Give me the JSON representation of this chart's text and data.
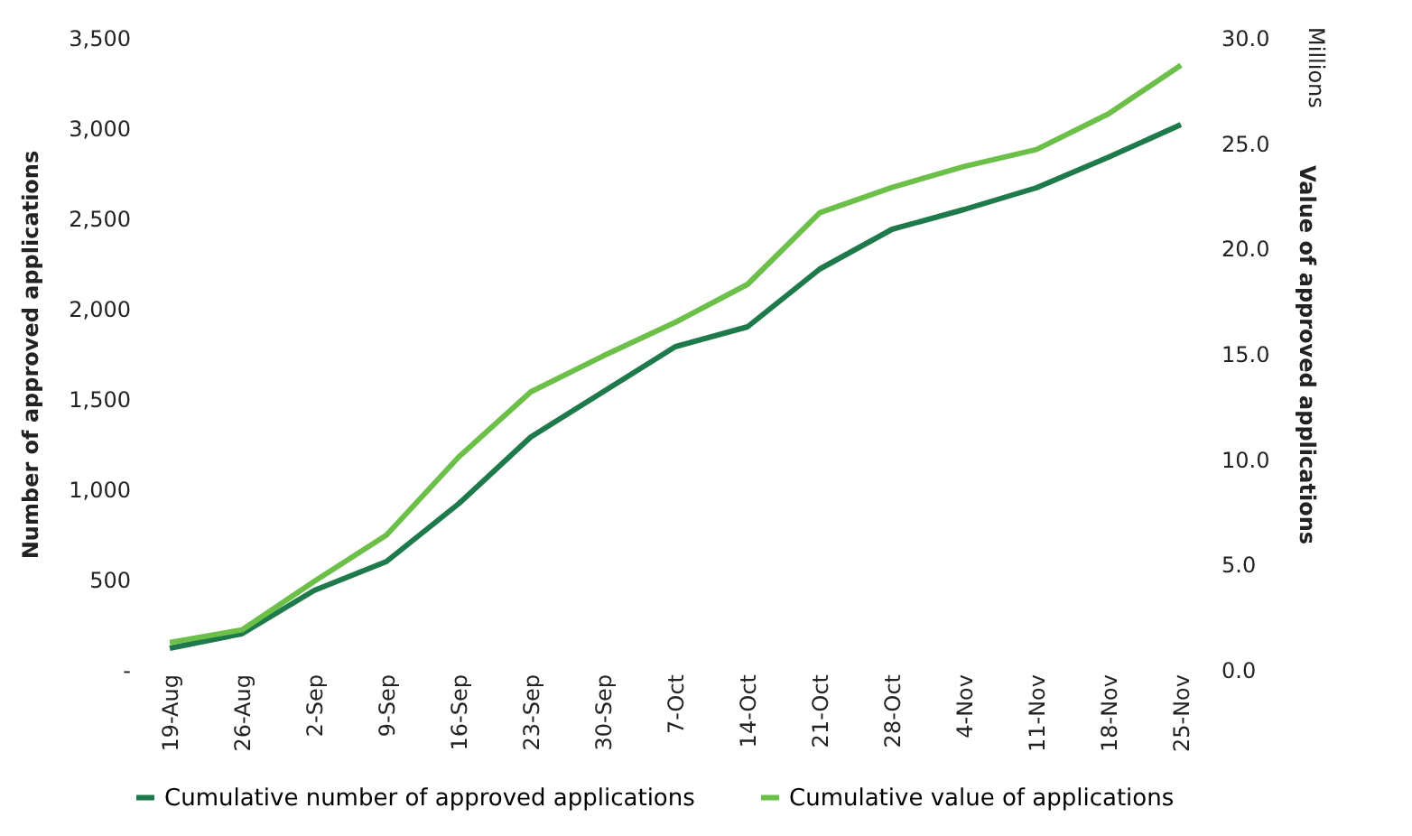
{
  "chart_data": {
    "type": "line",
    "categories": [
      "19-Aug",
      "26-Aug",
      "2-Sep",
      "9-Sep",
      "16-Sep",
      "23-Sep",
      "30-Sep",
      "7-Oct",
      "14-Oct",
      "21-Oct",
      "28-Oct",
      "4-Nov",
      "11-Nov",
      "18-Nov",
      "25-Nov"
    ],
    "series": [
      {
        "name": "Cumulative number of approved applications",
        "color": "#1e7a4a",
        "values": [
          120,
          200,
          440,
          600,
          920,
          1290,
          1540,
          1790,
          1900,
          2220,
          2440,
          2550,
          2670,
          2840,
          3020
        ]
      },
      {
        "name": "Cumulative value of applications",
        "color": "#6cc04a",
        "axis": "y2",
        "values": [
          1.3,
          1.9,
          4.2,
          6.4,
          10.1,
          13.2,
          14.9,
          16.5,
          18.3,
          21.7,
          22.9,
          23.9,
          24.7,
          26.4,
          28.7
        ]
      }
    ],
    "ylabel": "Number of approved applications",
    "y2label": "Value of approved applications",
    "annotations": [
      "Millions"
    ],
    "ylim": [
      0,
      3500
    ],
    "yticks": [
      {
        "value": 0,
        "label": "-"
      },
      {
        "value": 500,
        "label": "500"
      },
      {
        "value": 1000,
        "label": "1,000"
      },
      {
        "value": 1500,
        "label": "1,500"
      },
      {
        "value": 2000,
        "label": "2,000"
      },
      {
        "value": 2500,
        "label": "2,500"
      },
      {
        "value": 3000,
        "label": "3,000"
      },
      {
        "value": 3500,
        "label": "3,500"
      }
    ],
    "y2lim": [
      0,
      30
    ],
    "y2ticks": [
      {
        "value": 0,
        "label": "0.0"
      },
      {
        "value": 5,
        "label": "5.0"
      },
      {
        "value": 10,
        "label": "10.0"
      },
      {
        "value": 15,
        "label": "15.0"
      },
      {
        "value": 20,
        "label": "20.0"
      },
      {
        "value": 25,
        "label": "25.0"
      },
      {
        "value": 30,
        "label": "30.0"
      }
    ],
    "legend": "bottom",
    "grid": false,
    "marker": "none",
    "line_style": "solid"
  }
}
